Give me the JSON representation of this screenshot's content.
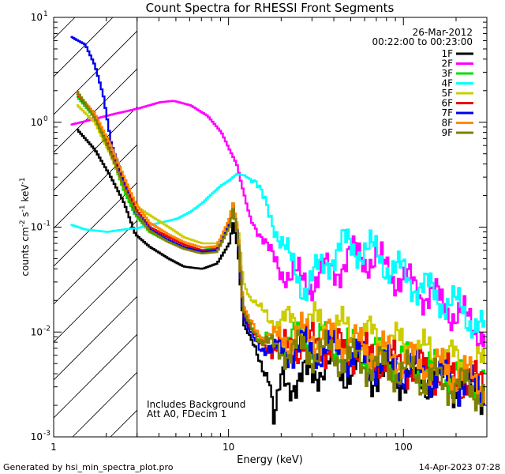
{
  "chart_data": {
    "type": "line",
    "title": "Count Spectra for RHESSI Front Segments",
    "xlabel": "Energy (keV)",
    "ylabel_base": "counts cm",
    "ylabel_exp1": "-2",
    "ylabel_mid": " s",
    "ylabel_exp2": "-1",
    "ylabel_tail": " keV",
    "ylabel_exp3": "-1",
    "x_scale": "log",
    "y_scale": "log",
    "xlim": [
      1,
      300
    ],
    "ylim": [
      0.001,
      10
    ],
    "x_ticks": [
      {
        "value": 1,
        "label": "1"
      },
      {
        "value": 10,
        "label": "10"
      },
      {
        "value": 100,
        "label": "100"
      }
    ],
    "y_ticks": [
      {
        "value": 0.001,
        "base": "10",
        "exp": "-3"
      },
      {
        "value": 0.01,
        "base": "10",
        "exp": "-2"
      },
      {
        "value": 0.1,
        "base": "10",
        "exp": "-1"
      },
      {
        "value": 1,
        "base": "10",
        "exp": "0"
      },
      {
        "value": 10,
        "base": "10",
        "exp": "1"
      }
    ],
    "hatched_region": [
      1,
      3
    ],
    "date": "26-Mar-2012",
    "time_range": "00:22:00 to 00:23:00",
    "annotations": [
      "Includes Background",
      "Att A0, FDecim 1"
    ],
    "legend_position": "top-right",
    "series": [
      {
        "name": "1F",
        "color": "#000000",
        "points": [
          [
            1.35,
            0.85
          ],
          [
            1.7,
            0.55
          ],
          [
            2.1,
            0.3
          ],
          [
            2.5,
            0.17
          ],
          [
            2.9,
            0.085
          ],
          [
            3.5,
            0.065
          ],
          [
            4.5,
            0.05
          ],
          [
            5.5,
            0.042
          ],
          [
            7,
            0.04
          ],
          [
            8.5,
            0.045
          ],
          [
            10,
            0.07
          ],
          [
            10.5,
            0.11
          ],
          [
            11.2,
            0.06
          ],
          [
            12,
            0.012
          ],
          [
            13,
            0.009
          ],
          [
            15,
            0.0055
          ],
          [
            17,
            0.0035
          ],
          [
            18,
            0.0012
          ],
          [
            20,
            0.004
          ],
          [
            25,
            0.003
          ],
          [
            30,
            0.0045
          ],
          [
            40,
            0.0045
          ],
          [
            55,
            0.0042
          ],
          [
            75,
            0.0038
          ],
          [
            100,
            0.0036
          ],
          [
            150,
            0.0034
          ],
          [
            200,
            0.003
          ],
          [
            290,
            0.0026
          ]
        ]
      },
      {
        "name": "2F",
        "color": "#ff00ff",
        "points": [
          [
            1.25,
            0.95
          ],
          [
            1.6,
            1.05
          ],
          [
            2.2,
            1.2
          ],
          [
            3,
            1.35
          ],
          [
            4,
            1.55
          ],
          [
            4.8,
            1.6
          ],
          [
            6,
            1.45
          ],
          [
            7.5,
            1.15
          ],
          [
            9,
            0.8
          ],
          [
            10,
            0.55
          ],
          [
            11,
            0.4
          ],
          [
            12,
            0.22
          ],
          [
            13,
            0.13
          ],
          [
            15,
            0.085
          ],
          [
            17,
            0.055
          ],
          [
            20,
            0.04
          ],
          [
            23,
            0.033
          ],
          [
            27,
            0.03
          ],
          [
            32,
            0.033
          ],
          [
            38,
            0.038
          ],
          [
            45,
            0.046
          ],
          [
            55,
            0.055
          ],
          [
            65,
            0.05
          ],
          [
            80,
            0.04
          ],
          [
            100,
            0.03
          ],
          [
            130,
            0.024
          ],
          [
            180,
            0.017
          ],
          [
            240,
            0.012
          ],
          [
            290,
            0.01
          ]
        ]
      },
      {
        "name": "3F",
        "color": "#00e000",
        "points": [
          [
            1.35,
            1.75
          ],
          [
            1.7,
            1.1
          ],
          [
            2.1,
            0.5
          ],
          [
            2.5,
            0.22
          ],
          [
            2.9,
            0.13
          ],
          [
            3.5,
            0.09
          ],
          [
            4.5,
            0.072
          ],
          [
            5.5,
            0.064
          ],
          [
            7,
            0.06
          ],
          [
            8.5,
            0.065
          ],
          [
            10,
            0.12
          ],
          [
            10.5,
            0.17
          ],
          [
            11.2,
            0.09
          ],
          [
            12,
            0.018
          ],
          [
            13,
            0.012
          ],
          [
            15,
            0.0085
          ],
          [
            18,
            0.0075
          ],
          [
            22,
            0.008
          ],
          [
            27,
            0.009
          ],
          [
            33,
            0.008
          ],
          [
            40,
            0.0078
          ],
          [
            50,
            0.0068
          ],
          [
            65,
            0.0062
          ],
          [
            85,
            0.0055
          ],
          [
            110,
            0.0048
          ],
          [
            150,
            0.0042
          ],
          [
            200,
            0.0037
          ],
          [
            290,
            0.0032
          ]
        ]
      },
      {
        "name": "4F",
        "color": "#00ffff",
        "points": [
          [
            1.25,
            0.105
          ],
          [
            1.5,
            0.095
          ],
          [
            2,
            0.09
          ],
          [
            2.5,
            0.095
          ],
          [
            3,
            0.098
          ],
          [
            4,
            0.11
          ],
          [
            5,
            0.12
          ],
          [
            6,
            0.14
          ],
          [
            7,
            0.17
          ],
          [
            8,
            0.21
          ],
          [
            9,
            0.25
          ],
          [
            10,
            0.28
          ],
          [
            11,
            0.32
          ],
          [
            12.5,
            0.31
          ],
          [
            14,
            0.27
          ],
          [
            16,
            0.17
          ],
          [
            18,
            0.11
          ],
          [
            20,
            0.07
          ],
          [
            23,
            0.04
          ],
          [
            27,
            0.028
          ],
          [
            32,
            0.035
          ],
          [
            38,
            0.055
          ],
          [
            45,
            0.065
          ],
          [
            55,
            0.065
          ],
          [
            65,
            0.058
          ],
          [
            80,
            0.045
          ],
          [
            100,
            0.034
          ],
          [
            130,
            0.026
          ],
          [
            180,
            0.019
          ],
          [
            240,
            0.014
          ],
          [
            290,
            0.0095
          ]
        ]
      },
      {
        "name": "5F",
        "color": "#cccc00",
        "points": [
          [
            1.35,
            1.45
          ],
          [
            1.7,
            1.0
          ],
          [
            2.1,
            0.48
          ],
          [
            2.5,
            0.24
          ],
          [
            2.9,
            0.16
          ],
          [
            3.5,
            0.13
          ],
          [
            4.5,
            0.1
          ],
          [
            5.5,
            0.08
          ],
          [
            7,
            0.07
          ],
          [
            8.5,
            0.07
          ],
          [
            10,
            0.1
          ],
          [
            10.5,
            0.15
          ],
          [
            11.2,
            0.1
          ],
          [
            12,
            0.03
          ],
          [
            13,
            0.022
          ],
          [
            15,
            0.016
          ],
          [
            18,
            0.013
          ],
          [
            22,
            0.012
          ],
          [
            27,
            0.012
          ],
          [
            33,
            0.012
          ],
          [
            40,
            0.011
          ],
          [
            50,
            0.01
          ],
          [
            65,
            0.009
          ],
          [
            85,
            0.008
          ],
          [
            110,
            0.007
          ],
          [
            150,
            0.006
          ],
          [
            200,
            0.0052
          ],
          [
            290,
            0.0045
          ]
        ]
      },
      {
        "name": "6F",
        "color": "#ee0000",
        "points": [
          [
            1.35,
            1.85
          ],
          [
            1.7,
            1.15
          ],
          [
            2.1,
            0.52
          ],
          [
            2.5,
            0.26
          ],
          [
            2.9,
            0.15
          ],
          [
            3.5,
            0.1
          ],
          [
            4.5,
            0.08
          ],
          [
            5.5,
            0.068
          ],
          [
            7,
            0.06
          ],
          [
            8.5,
            0.062
          ],
          [
            10,
            0.11
          ],
          [
            10.5,
            0.16
          ],
          [
            11.2,
            0.08
          ],
          [
            12,
            0.015
          ],
          [
            13,
            0.011
          ],
          [
            15,
            0.008
          ],
          [
            18,
            0.007
          ],
          [
            22,
            0.0072
          ],
          [
            27,
            0.008
          ],
          [
            33,
            0.0075
          ],
          [
            40,
            0.0072
          ],
          [
            50,
            0.0065
          ],
          [
            65,
            0.0058
          ],
          [
            85,
            0.0052
          ],
          [
            110,
            0.0046
          ],
          [
            150,
            0.0041
          ],
          [
            200,
            0.0036
          ],
          [
            290,
            0.0031
          ]
        ]
      },
      {
        "name": "7F",
        "color": "#0000ee",
        "points": [
          [
            1.25,
            6.5
          ],
          [
            1.5,
            5.5
          ],
          [
            1.7,
            3.5
          ],
          [
            1.9,
            1.8
          ],
          [
            2.1,
            0.65
          ],
          [
            2.5,
            0.26
          ],
          [
            2.9,
            0.14
          ],
          [
            3.5,
            0.095
          ],
          [
            4.5,
            0.075
          ],
          [
            5.5,
            0.064
          ],
          [
            7,
            0.058
          ],
          [
            8.5,
            0.06
          ],
          [
            10,
            0.11
          ],
          [
            10.5,
            0.16
          ],
          [
            11.2,
            0.08
          ],
          [
            12,
            0.014
          ],
          [
            13,
            0.01
          ],
          [
            15,
            0.0075
          ],
          [
            18,
            0.0065
          ],
          [
            22,
            0.0068
          ],
          [
            27,
            0.0072
          ],
          [
            33,
            0.0068
          ],
          [
            40,
            0.0065
          ],
          [
            50,
            0.0058
          ],
          [
            65,
            0.0052
          ],
          [
            85,
            0.0047
          ],
          [
            110,
            0.0042
          ],
          [
            150,
            0.0037
          ],
          [
            200,
            0.0033
          ],
          [
            290,
            0.0028
          ]
        ]
      },
      {
        "name": "8F",
        "color": "#ff8800",
        "points": [
          [
            1.35,
            1.9
          ],
          [
            1.7,
            1.2
          ],
          [
            2.1,
            0.6
          ],
          [
            2.5,
            0.3
          ],
          [
            2.9,
            0.17
          ],
          [
            3.5,
            0.11
          ],
          [
            4.5,
            0.085
          ],
          [
            5.5,
            0.072
          ],
          [
            7,
            0.064
          ],
          [
            8.5,
            0.066
          ],
          [
            10,
            0.12
          ],
          [
            10.5,
            0.17
          ],
          [
            11.2,
            0.09
          ],
          [
            12,
            0.018
          ],
          [
            13,
            0.013
          ],
          [
            15,
            0.0095
          ],
          [
            18,
            0.0085
          ],
          [
            22,
            0.0088
          ],
          [
            27,
            0.0095
          ],
          [
            33,
            0.009
          ],
          [
            40,
            0.0085
          ],
          [
            50,
            0.0076
          ],
          [
            65,
            0.0068
          ],
          [
            85,
            0.006
          ],
          [
            110,
            0.0053
          ],
          [
            150,
            0.0046
          ],
          [
            200,
            0.004
          ],
          [
            290,
            0.0034
          ]
        ]
      },
      {
        "name": "9F",
        "color": "#808000",
        "points": [
          [
            1.35,
            1.95
          ],
          [
            1.7,
            1.1
          ],
          [
            2.1,
            0.5
          ],
          [
            2.5,
            0.24
          ],
          [
            2.9,
            0.14
          ],
          [
            3.5,
            0.092
          ],
          [
            4.5,
            0.072
          ],
          [
            5.5,
            0.062
          ],
          [
            7,
            0.056
          ],
          [
            8.5,
            0.058
          ],
          [
            10,
            0.1
          ],
          [
            10.5,
            0.15
          ],
          [
            11.2,
            0.08
          ],
          [
            12,
            0.016
          ],
          [
            13,
            0.012
          ],
          [
            15,
            0.0085
          ],
          [
            18,
            0.007
          ],
          [
            22,
            0.0065
          ],
          [
            27,
            0.0068
          ],
          [
            33,
            0.0064
          ],
          [
            40,
            0.006
          ],
          [
            50,
            0.0054
          ],
          [
            65,
            0.0049
          ],
          [
            85,
            0.0044
          ],
          [
            110,
            0.004
          ],
          [
            150,
            0.0035
          ],
          [
            200,
            0.0031
          ],
          [
            290,
            0.0027
          ]
        ]
      }
    ]
  },
  "footer": {
    "generated_by": "Generated by hsi_min_spectra_plot.pro",
    "timestamp": "14-Apr-2023 07:28"
  }
}
